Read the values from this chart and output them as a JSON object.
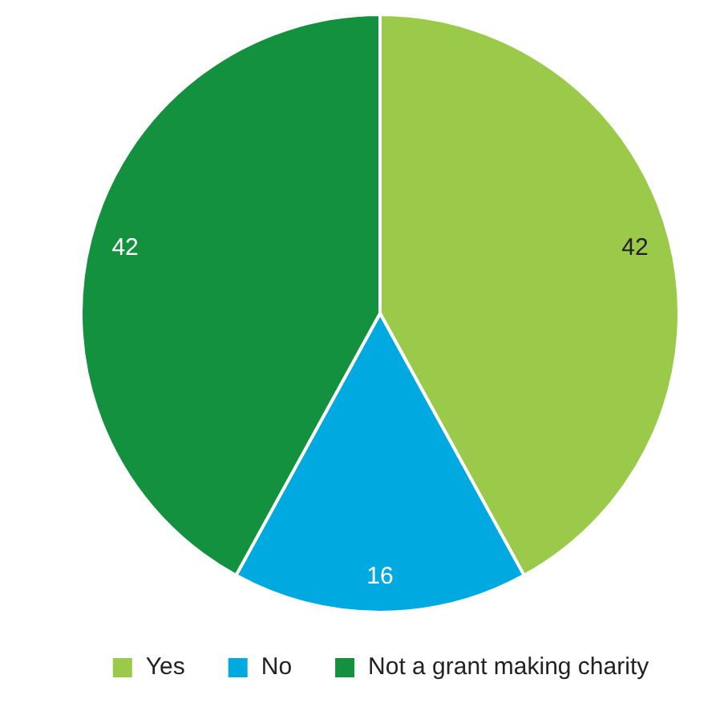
{
  "chart_data": {
    "type": "pie",
    "categories": [
      "Yes",
      "No",
      "Not a grant making charity"
    ],
    "values": [
      42,
      16,
      42
    ],
    "colors": [
      "#9bc94a",
      "#00a9e0",
      "#13913f"
    ],
    "data_labels": true,
    "legend": "bottom"
  }
}
